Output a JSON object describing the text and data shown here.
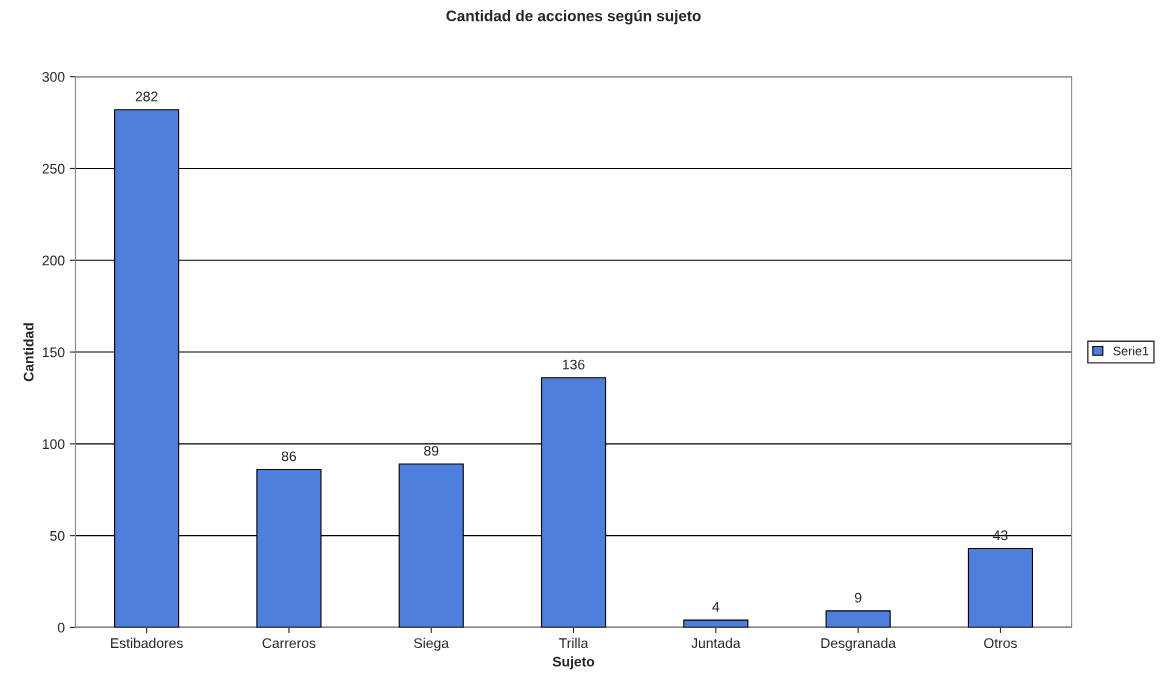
{
  "chart_data": {
    "type": "bar",
    "title": "Cantidad de acciones según sujeto",
    "xlabel": "Sujeto",
    "ylabel": "Cantidad",
    "categories": [
      "Estibadores",
      "Carreros",
      "Siega",
      "Trilla",
      "Juntada",
      "Desgranada",
      "Otros"
    ],
    "series": [
      {
        "name": "Serie1",
        "color": "#4f7fdc",
        "values": [
          282,
          86,
          89,
          136,
          4,
          9,
          43
        ]
      }
    ],
    "ylim": [
      0,
      300
    ],
    "yticks": [
      0,
      50,
      100,
      150,
      200,
      250,
      300
    ],
    "grid": "y",
    "legend": "right",
    "data_labels": true
  }
}
